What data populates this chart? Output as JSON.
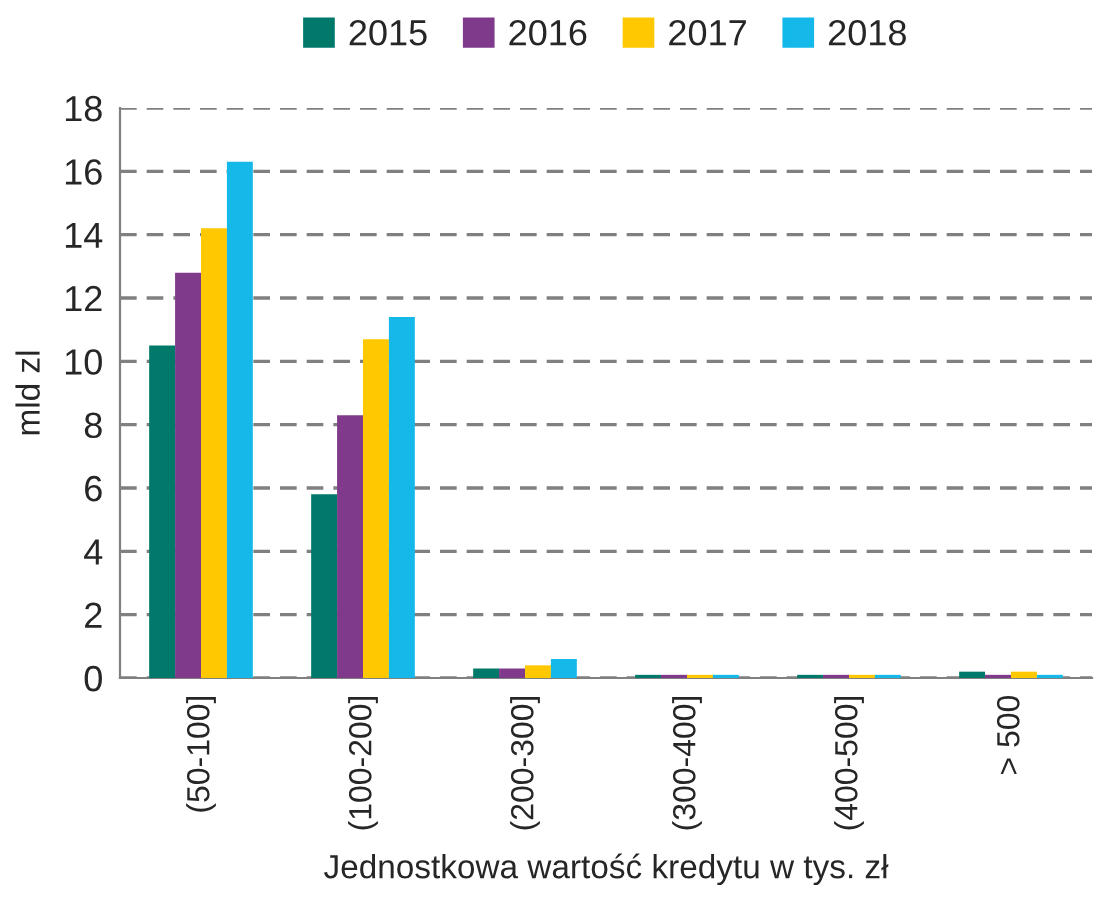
{
  "chart_data": {
    "type": "bar",
    "xlabel": "Jednostkowa wartość kredytu w tys. zł",
    "ylabel": "mld zl",
    "categories": [
      "(50-100]",
      "(100-200]",
      "(200-300]",
      "(300-400]",
      "(400-500]",
      "> 500"
    ],
    "series": [
      {
        "name": "2015",
        "color": "#00796b",
        "values": [
          10.5,
          5.8,
          0.3,
          0.1,
          0.1,
          0.2
        ]
      },
      {
        "name": "2016",
        "color": "#7f3a8c",
        "values": [
          12.8,
          8.3,
          0.3,
          0.1,
          0.1,
          0.1
        ]
      },
      {
        "name": "2017",
        "color": "#ffc800",
        "values": [
          14.2,
          10.7,
          0.4,
          0.1,
          0.1,
          0.2
        ]
      },
      {
        "name": "2018",
        "color": "#14b9ea",
        "values": [
          16.3,
          11.4,
          0.6,
          0.1,
          0.1,
          0.1
        ]
      }
    ],
    "ylim": [
      0,
      18
    ],
    "yticks": [
      0,
      2,
      4,
      6,
      8,
      10,
      12,
      14,
      16,
      18
    ],
    "grid": "y",
    "legend": "top"
  }
}
